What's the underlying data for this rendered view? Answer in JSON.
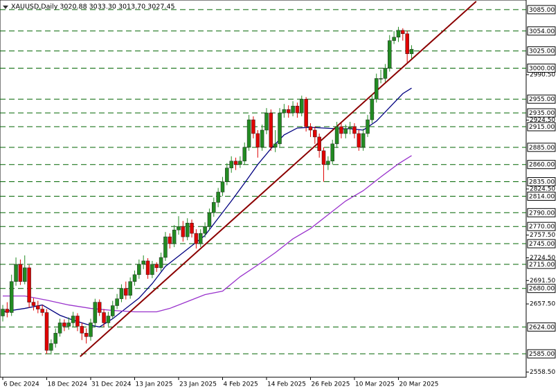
{
  "chart_data": {
    "type": "candlestick",
    "title": "XAUUSD,Daily  3020.88 3033.30 3013.70 3027.45",
    "xlim": [
      -0.63,
      119.06
    ],
    "ylim": [
      2551,
      3099
    ],
    "xticks": [
      {
        "value": 0,
        "label": "6 Dec 2024"
      },
      {
        "value": 10,
        "label": "18 Dec 2024"
      },
      {
        "value": 20,
        "label": "31 Dec 2024"
      },
      {
        "value": 30,
        "label": "13 Jan 2025"
      },
      {
        "value": 40,
        "label": "23 Jan 2025"
      },
      {
        "value": 50,
        "label": "4 Feb 2025"
      },
      {
        "value": 60,
        "label": "14 Feb 2025"
      },
      {
        "value": 70,
        "label": "26 Feb 2025"
      },
      {
        "value": 80,
        "label": "10 Mar 2025"
      },
      {
        "value": 90,
        "label": "20 Mar 2025"
      }
    ],
    "yticks": [
      {
        "value": 2990.5,
        "label": "2990.50"
      },
      {
        "value": 2924.5,
        "label": "2924.50"
      },
      {
        "value": 2824.5,
        "label": "2824.50"
      },
      {
        "value": 2757.5,
        "label": "2757.50"
      },
      {
        "value": 2724.5,
        "label": "2724.50"
      },
      {
        "value": 2691.5,
        "label": "2691.50"
      },
      {
        "value": 2657.5,
        "label": "2657.50"
      },
      {
        "value": 2558.5,
        "label": "2558.50"
      }
    ],
    "levels": [
      {
        "value": 3085,
        "label": "3085.00"
      },
      {
        "value": 3054,
        "label": "3054.00"
      },
      {
        "value": 3025,
        "label": "3025.00"
      },
      {
        "value": 3000,
        "label": "3000.00"
      },
      {
        "value": 2955,
        "label": "2955.00"
      },
      {
        "value": 2935,
        "label": "2935.00"
      },
      {
        "value": 2915,
        "label": "2915.00"
      },
      {
        "value": 2885,
        "label": "2885.00"
      },
      {
        "value": 2860,
        "label": "2860.00"
      },
      {
        "value": 2835,
        "label": "2835.00"
      },
      {
        "value": 2814,
        "label": "2814.00"
      },
      {
        "value": 2790,
        "label": "2790.00"
      },
      {
        "value": 2770,
        "label": "2770.00"
      },
      {
        "value": 2745,
        "label": "2745.00"
      },
      {
        "value": 2715,
        "label": "2715.00"
      },
      {
        "value": 2680,
        "label": "2680.00"
      },
      {
        "value": 2624,
        "label": "2624.00"
      },
      {
        "value": 2585,
        "label": "2585.00"
      }
    ],
    "level_color": "#006400",
    "up_color": "#228b22",
    "down_color": "#e00000",
    "open": [
      2640,
      2650,
      2645,
      2690,
      2715,
      2690,
      2710,
      2660,
      2655,
      2650,
      2645,
      2590,
      2600,
      2615,
      2630,
      2625,
      2630,
      2640,
      2625,
      2615,
      2610,
      2630,
      2660,
      2645,
      2630,
      2640,
      2655,
      2665,
      2680,
      2670,
      2690,
      2700,
      2715,
      2720,
      2700,
      2715,
      2710,
      2725,
      2755,
      2745,
      2765,
      2770,
      2755,
      2775,
      2760,
      2745,
      2760,
      2770,
      2790,
      2805,
      2820,
      2835,
      2855,
      2865,
      2860,
      2865,
      2885,
      2925,
      2905,
      2885,
      2910,
      2935,
      2885,
      2890,
      2935,
      2940,
      2935,
      2945,
      2935,
      2955,
      2915,
      2910,
      2900,
      2880,
      2860,
      2865,
      2890,
      2915,
      2905,
      2912,
      2915,
      2905,
      2885,
      2905,
      2925,
      2955,
      2985,
      2985,
      3000,
      3040,
      3045,
      3055,
      3050,
      3020.88
    ],
    "high": [
      2656,
      2660,
      2700,
      2725,
      2722,
      2728,
      2714,
      2666,
      2662,
      2656,
      2650,
      2606,
      2622,
      2636,
      2635,
      2638,
      2646,
      2644,
      2630,
      2622,
      2636,
      2665,
      2664,
      2650,
      2646,
      2662,
      2672,
      2686,
      2690,
      2696,
      2706,
      2722,
      2728,
      2724,
      2720,
      2718,
      2732,
      2762,
      2760,
      2772,
      2785,
      2778,
      2782,
      2780,
      2766,
      2766,
      2776,
      2796,
      2812,
      2826,
      2842,
      2862,
      2872,
      2870,
      2872,
      2892,
      2932,
      2930,
      2910,
      2918,
      2942,
      2940,
      2910,
      2942,
      2948,
      2946,
      2952,
      2950,
      2960,
      2958,
      2920,
      2915,
      2905,
      2885,
      2872,
      2896,
      2922,
      2920,
      2918,
      2922,
      2920,
      2910,
      2912,
      2932,
      2962,
      2992,
      2998,
      3006,
      3048,
      3054,
      3060,
      3058,
      3054,
      3033.3
    ],
    "low": [
      2632,
      2638,
      2640,
      2684,
      2685,
      2686,
      2652,
      2648,
      2644,
      2640,
      2585,
      2584,
      2594,
      2610,
      2618,
      2620,
      2624,
      2618,
      2605,
      2600,
      2604,
      2625,
      2640,
      2624,
      2625,
      2636,
      2650,
      2660,
      2664,
      2665,
      2684,
      2694,
      2708,
      2694,
      2695,
      2704,
      2705,
      2720,
      2738,
      2740,
      2758,
      2748,
      2750,
      2754,
      2738,
      2740,
      2754,
      2764,
      2784,
      2798,
      2814,
      2830,
      2848,
      2852,
      2855,
      2860,
      2880,
      2898,
      2870,
      2880,
      2904,
      2880,
      2878,
      2886,
      2928,
      2928,
      2930,
      2928,
      2930,
      2908,
      2900,
      2890,
      2870,
      2835,
      2852,
      2860,
      2884,
      2898,
      2898,
      2904,
      2898,
      2880,
      2880,
      2900,
      2920,
      2950,
      2978,
      2980,
      2995,
      3035,
      3038,
      3040,
      3008,
      3013.7
    ],
    "close": [
      2650,
      2645,
      2690,
      2715,
      2690,
      2710,
      2660,
      2655,
      2650,
      2645,
      2590,
      2600,
      2615,
      2630,
      2625,
      2630,
      2640,
      2625,
      2615,
      2610,
      2630,
      2660,
      2645,
      2630,
      2640,
      2655,
      2665,
      2680,
      2670,
      2690,
      2700,
      2715,
      2720,
      2700,
      2715,
      2710,
      2725,
      2755,
      2745,
      2765,
      2770,
      2755,
      2775,
      2760,
      2745,
      2760,
      2770,
      2790,
      2805,
      2820,
      2835,
      2855,
      2865,
      2860,
      2865,
      2885,
      2925,
      2905,
      2885,
      2910,
      2935,
      2885,
      2890,
      2935,
      2940,
      2935,
      2945,
      2935,
      2955,
      2915,
      2910,
      2900,
      2880,
      2860,
      2865,
      2890,
      2915,
      2905,
      2912,
      2915,
      2905,
      2885,
      2905,
      2925,
      2955,
      2985,
      2985,
      3000,
      3040,
      3045,
      3055,
      3050,
      3020.88,
      3027.45
    ],
    "ma_lines": [
      {
        "color": "#000080",
        "x": [
          0,
          5,
          9,
          13,
          16,
          19,
          22,
          25,
          28,
          31,
          34,
          37,
          40,
          43,
          46,
          49,
          52,
          55,
          58,
          61,
          64,
          67,
          70,
          73,
          76,
          79,
          82,
          85,
          88,
          91,
          93
        ],
        "values": [
          2646,
          2651,
          2656,
          2641,
          2634,
          2628,
          2624,
          2636,
          2651,
          2666,
          2687,
          2712,
          2727,
          2742,
          2757,
          2782,
          2807,
          2833,
          2860,
          2883,
          2903,
          2913,
          2914,
          2913,
          2912,
          2912,
          2910,
          2923,
          2943,
          2963,
          2971
        ]
      },
      {
        "color": "#9932cc",
        "x": [
          0,
          5,
          10,
          15,
          20,
          25,
          30,
          35,
          38,
          42,
          46,
          50,
          54,
          58,
          62,
          66,
          70,
          74,
          78,
          82,
          86,
          90,
          93
        ],
        "values": [
          2669,
          2669,
          2663,
          2656,
          2651,
          2648,
          2646,
          2646,
          2651,
          2661,
          2671,
          2676,
          2697,
          2714,
          2732,
          2752,
          2767,
          2787,
          2807,
          2822,
          2842,
          2861,
          2873
        ]
      }
    ],
    "trendline": {
      "color": "#8b0000",
      "x": [
        17.6,
        107.7
      ],
      "values": [
        2581,
        3097
      ]
    }
  }
}
